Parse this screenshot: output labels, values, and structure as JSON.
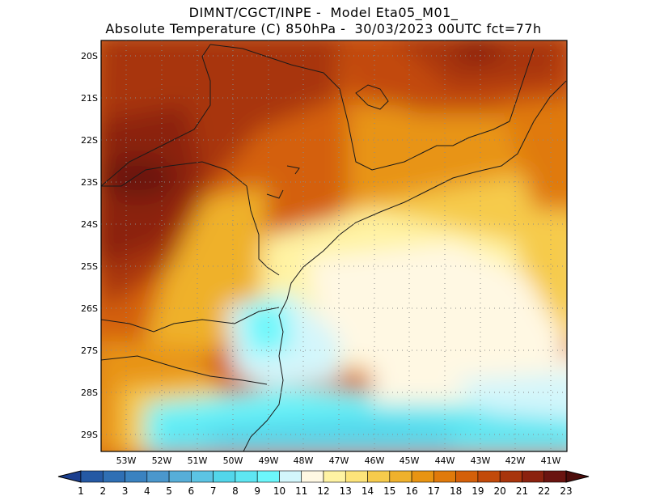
{
  "title": {
    "line1": "DIMNT/CGCT/INPE -  Model Eta05_M01_",
    "line2": "Absolute Temperature (C) 850hPa -  30/03/2023 00UTC fct=77h"
  },
  "axes": {
    "lat_labels": [
      "20S",
      "21S",
      "22S",
      "23S",
      "24S",
      "25S",
      "26S",
      "27S",
      "28S",
      "29S"
    ],
    "lon_labels": [
      "53W",
      "52W",
      "51W",
      "50W",
      "49W",
      "48W",
      "47W",
      "46W",
      "45W",
      "44W",
      "43W",
      "42W",
      "41W"
    ],
    "grid": true
  },
  "colorbar": {
    "labels": [
      "1",
      "2",
      "3",
      "4",
      "5",
      "6",
      "7",
      "8",
      "9",
      "10",
      "11",
      "12",
      "13",
      "14",
      "15",
      "16",
      "17",
      "18",
      "19",
      "20",
      "21",
      "22",
      "23"
    ],
    "colors": [
      "#1b3f8f",
      "#2559a4",
      "#2f6fb4",
      "#3a82c0",
      "#4b97cc",
      "#57aed8",
      "#5cc4e4",
      "#52d6ea",
      "#5ee6f2",
      "#6cf7fb",
      "#d3f6fb",
      "#fff8e3",
      "#fff3a3",
      "#fde47a",
      "#f6cb4c",
      "#efb12c",
      "#e89412",
      "#e07a0b",
      "#d4600a",
      "#c24a0a",
      "#a8350c",
      "#8b220f",
      "#6a1410",
      "#4d0d0b"
    ]
  },
  "chart_data": {
    "type": "heatmap",
    "variable": "Absolute Temperature (C) 850hPa",
    "lat_range": [
      -29.4,
      -19.7
    ],
    "lon_range": [
      -53.8,
      -40.6
    ],
    "value_range": [
      1,
      23
    ]
  }
}
